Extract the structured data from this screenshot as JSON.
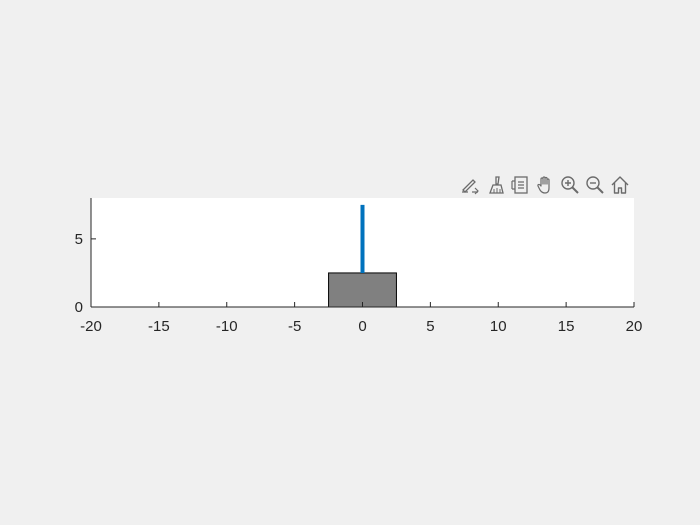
{
  "toolbar": {
    "buttons": [
      {
        "name": "data-tips-icon"
      },
      {
        "name": "brush-icon"
      },
      {
        "name": "linked-data-icon"
      },
      {
        "name": "pan-hand-icon"
      },
      {
        "name": "zoom-in-icon"
      },
      {
        "name": "zoom-out-icon"
      },
      {
        "name": "home-icon"
      }
    ]
  },
  "chart_data": {
    "type": "scatter",
    "title": "",
    "xlabel": "",
    "ylabel": "",
    "xlim": [
      -20,
      20
    ],
    "ylim": [
      0,
      8
    ],
    "xticks": [
      "-20",
      "-15",
      "-10",
      "-5",
      "0",
      "5",
      "10",
      "15",
      "20"
    ],
    "yticks": [
      "0",
      "5"
    ],
    "grid": false,
    "shapes": [
      {
        "name": "cart",
        "kind": "rectangle",
        "x": [
          -2.5,
          2.5
        ],
        "y": [
          0,
          2.5
        ],
        "fill": "#808080",
        "edge": "#000000"
      },
      {
        "name": "pole",
        "kind": "line",
        "x": [
          0,
          0
        ],
        "y": [
          2.5,
          7.5
        ],
        "color": "#0072bd"
      }
    ]
  }
}
